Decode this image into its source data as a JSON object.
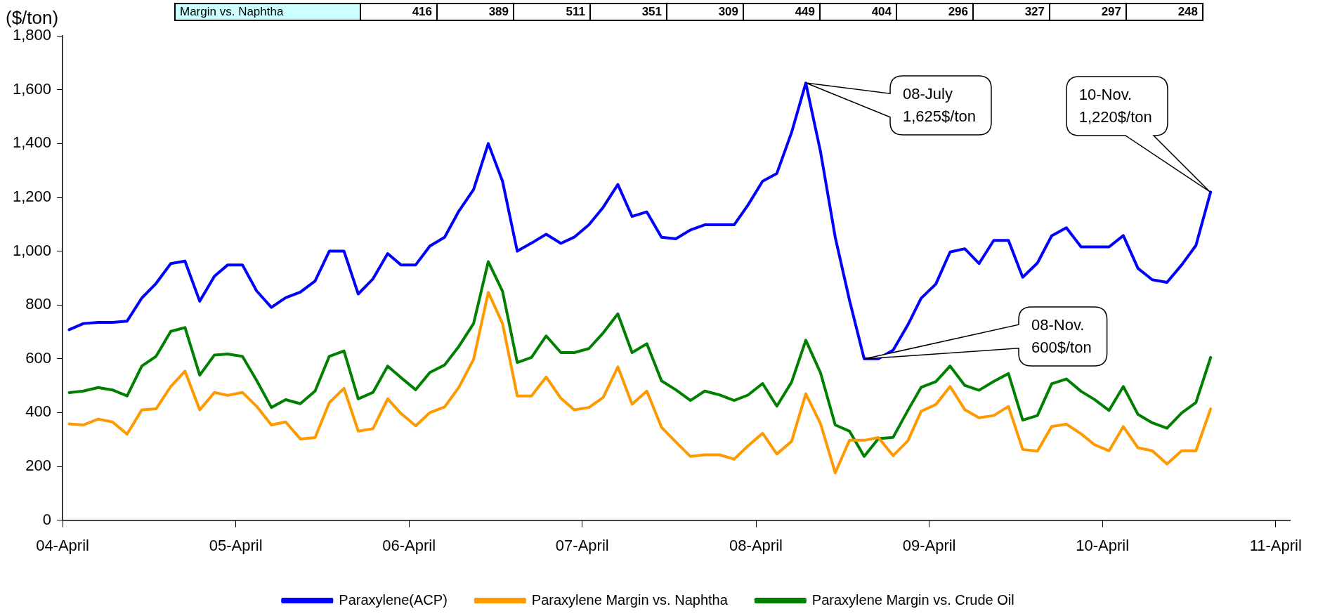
{
  "chart_data": [
    {
      "type": "other",
      "annotations": [
        "Margin vs. Naphtha",
        "416",
        "389",
        "511",
        "351",
        "309",
        "449",
        "404",
        "296",
        "327",
        "297",
        "248"
      ]
    },
    {
      "type": "line",
      "ylabel": "($/ton)",
      "legend": "bottom",
      "grid": false,
      "marker": "none",
      "line_style": "solid",
      "x": [
        "2004-04-15",
        "2004-05-15",
        "2004-06-15",
        "2004-07-15",
        "2004-08-15",
        "2004-09-15",
        "2004-10-15",
        "2004-11-15",
        "2004-12-15",
        "2005-01-15",
        "2005-02-15",
        "2005-03-15",
        "2005-04-15",
        "2005-05-15",
        "2005-06-15",
        "2005-07-15",
        "2005-08-15",
        "2005-09-15",
        "2005-10-15",
        "2005-11-15",
        "2005-12-15",
        "2006-01-15",
        "2006-02-15",
        "2006-03-15",
        "2006-04-15",
        "2006-05-15",
        "2006-06-15",
        "2006-07-15",
        "2006-08-15",
        "2006-09-15",
        "2006-10-15",
        "2006-11-15",
        "2006-12-15",
        "2007-01-15",
        "2007-02-15",
        "2007-03-15",
        "2007-04-15",
        "2007-05-15",
        "2007-06-15",
        "2007-07-15",
        "2007-08-15",
        "2007-09-15",
        "2007-10-15",
        "2007-11-15",
        "2007-12-15",
        "2008-01-15",
        "2008-02-15",
        "2008-03-15",
        "2008-04-15",
        "2008-05-15",
        "2008-06-15",
        "2008-07-15",
        "2008-08-15",
        "2008-09-15",
        "2008-10-15",
        "2008-11-15",
        "2008-12-15",
        "2009-01-15",
        "2009-02-15",
        "2009-03-15",
        "2009-04-15",
        "2009-05-15",
        "2009-06-15",
        "2009-07-15",
        "2009-08-15",
        "2009-09-15",
        "2009-10-15",
        "2009-11-15",
        "2009-12-15",
        "2010-01-15",
        "2010-02-15",
        "2010-03-15",
        "2010-04-15",
        "2010-05-15",
        "2010-06-15",
        "2010-07-15",
        "2010-08-15",
        "2010-09-15",
        "2010-10-15",
        "2010-11-15"
      ],
      "series": [
        {
          "name": "Paraxylene(ACP)",
          "color": "#0000ff",
          "values": [
            708,
            731,
            735,
            735,
            740,
            826,
            880,
            954,
            963,
            814,
            907,
            949,
            949,
            852,
            791,
            827,
            848,
            889,
            1000,
            1000,
            841,
            897,
            991,
            949,
            949,
            1019,
            1052,
            1149,
            1229,
            1400,
            1260,
            1000,
            1030,
            1063,
            1029,
            1052,
            1098,
            1163,
            1248,
            1129,
            1146,
            1052,
            1046,
            1079,
            1098,
            1098,
            1098,
            1171,
            1260,
            1289,
            1441,
            1625,
            1370,
            1052,
            818,
            600,
            600,
            632,
            726,
            825,
            878,
            997,
            1009,
            954,
            1040,
            1040,
            903,
            956,
            1057,
            1087,
            1016,
            1016,
            1016,
            1058,
            936,
            894,
            884,
            949,
            1021,
            1220
          ]
        },
        {
          "name": "Paraxylene Margin vs. Naphtha",
          "color": "#ff9900",
          "values": [
            358,
            354,
            376,
            365,
            320,
            410,
            414,
            497,
            554,
            410,
            475,
            464,
            475,
            423,
            354,
            365,
            302,
            307,
            437,
            490,
            331,
            340,
            451,
            397,
            351,
            400,
            421,
            494,
            598,
            847,
            731,
            462,
            462,
            532,
            453,
            410,
            419,
            456,
            570,
            431,
            480,
            345,
            291,
            237,
            243,
            243,
            227,
            276,
            323,
            246,
            293,
            470,
            359,
            176,
            297,
            297,
            307,
            240,
            295,
            405,
            430,
            497,
            411,
            381,
            389,
            423,
            263,
            257,
            348,
            357,
            321,
            281,
            258,
            348,
            269,
            258,
            209,
            258,
            258,
            414
          ]
        },
        {
          "name": "Paraxylene Margin vs. Crude Oil",
          "color": "#008000",
          "values": [
            474,
            480,
            493,
            484,
            462,
            573,
            609,
            702,
            716,
            539,
            614,
            618,
            609,
            519,
            419,
            448,
            433,
            480,
            609,
            629,
            451,
            475,
            573,
            530,
            485,
            549,
            577,
            646,
            731,
            961,
            851,
            586,
            605,
            685,
            623,
            623,
            638,
            696,
            767,
            623,
            656,
            518,
            485,
            445,
            480,
            466,
            445,
            465,
            508,
            424,
            513,
            669,
            548,
            354,
            331,
            237,
            303,
            308,
            408,
            494,
            515,
            573,
            501,
            483,
            516,
            545,
            372,
            389,
            507,
            525,
            479,
            449,
            408,
            497,
            393,
            362,
            342,
            399,
            437,
            605
          ]
        }
      ],
      "xlim": [
        "2004-04-01",
        "2011-05-01"
      ],
      "xticks": [
        {
          "value": "2004-04-01",
          "label": "04-April"
        },
        {
          "value": "2005-04-01",
          "label": "05-April"
        },
        {
          "value": "2006-04-01",
          "label": "06-April"
        },
        {
          "value": "2007-04-01",
          "label": "07-April"
        },
        {
          "value": "2008-04-01",
          "label": "08-April"
        },
        {
          "value": "2009-04-01",
          "label": "09-April"
        },
        {
          "value": "2010-04-01",
          "label": "10-April"
        },
        {
          "value": "2011-04-01",
          "label": "11-April"
        }
      ],
      "ylim": [
        0,
        1800
      ],
      "yticks": [
        0,
        200,
        400,
        600,
        800,
        {
          "value": 1000,
          "label": "1,000"
        },
        {
          "value": 1200,
          "label": "1,200"
        },
        {
          "value": 1400,
          "label": "1,400"
        },
        {
          "value": 1600,
          "label": "1,600"
        },
        {
          "value": 1800,
          "label": "1,800"
        }
      ],
      "annotations": [
        "08-July\n1,625$/ton",
        "08-Nov.\n600$/ton",
        "10-Nov.\n1,220$/ton"
      ]
    }
  ]
}
